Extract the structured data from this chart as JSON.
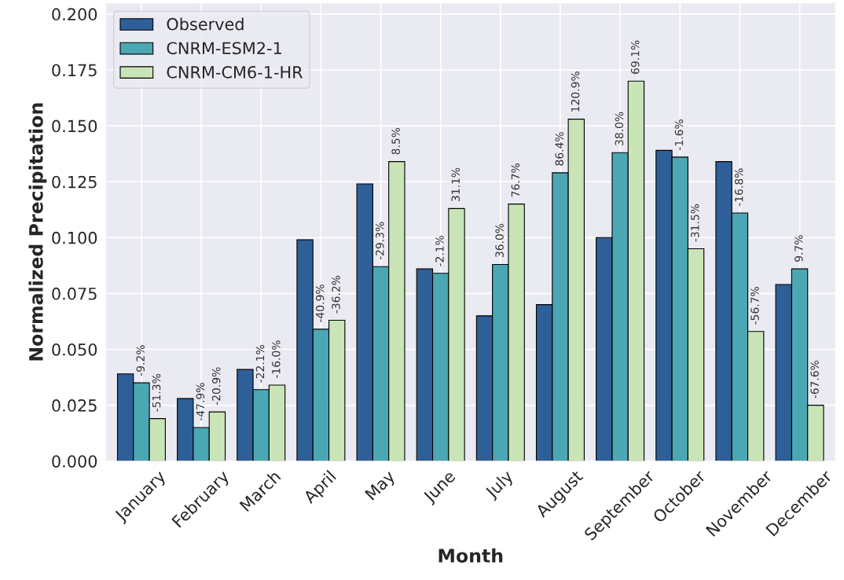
{
  "chart_data": {
    "type": "bar",
    "xlabel": "Month",
    "ylabel": "Normalized Precipitation",
    "categories": [
      "January",
      "February",
      "March",
      "April",
      "May",
      "June",
      "July",
      "August",
      "September",
      "October",
      "November",
      "December"
    ],
    "series": [
      {
        "name": "Observed",
        "color": "#2f5f98",
        "values": [
          0.039,
          0.028,
          0.041,
          0.099,
          0.124,
          0.086,
          0.065,
          0.07,
          0.1,
          0.139,
          0.134,
          0.079
        ]
      },
      {
        "name": "CNRM-ESM2-1",
        "color": "#4aa7b3",
        "values": [
          0.035,
          0.015,
          0.032,
          0.059,
          0.087,
          0.084,
          0.088,
          0.129,
          0.138,
          0.136,
          0.111,
          0.086
        ]
      },
      {
        "name": "CNRM-CM6-1-HR",
        "color": "#c9e4b6",
        "values": [
          0.019,
          0.022,
          0.034,
          0.063,
          0.134,
          0.113,
          0.115,
          0.153,
          0.17,
          0.095,
          0.058,
          0.025
        ]
      }
    ],
    "annotations": [
      "-9.2%",
      "-51.3%",
      "-47.9%",
      "-20.9%",
      "-22.1%",
      "-16.0%",
      "-40.9%",
      "-36.2%",
      "-29.3%",
      "8.5%",
      "-2.1%",
      "31.1%",
      "36.0%",
      "76.7%",
      "86.4%",
      "120.9%",
      "38.0%",
      "69.1%",
      "-1.6%",
      "-31.5%",
      "-16.8%",
      "-56.7%",
      "9.7%",
      "-67.6%"
    ],
    "ylim": [
      0,
      0.205
    ],
    "yticks": [
      {
        "value": 0,
        "label": "0.000"
      },
      {
        "value": 0.025,
        "label": "0.025"
      },
      {
        "value": 0.05,
        "label": "0.050"
      },
      {
        "value": 0.075,
        "label": "0.075"
      },
      {
        "value": 0.1,
        "label": "0.100"
      },
      {
        "value": 0.125,
        "label": "0.125"
      },
      {
        "value": 0.15,
        "label": "0.150"
      },
      {
        "value": 0.175,
        "label": "0.175"
      },
      {
        "value": 0.2,
        "label": "0.200"
      }
    ],
    "grid": true,
    "legend": "top left"
  }
}
